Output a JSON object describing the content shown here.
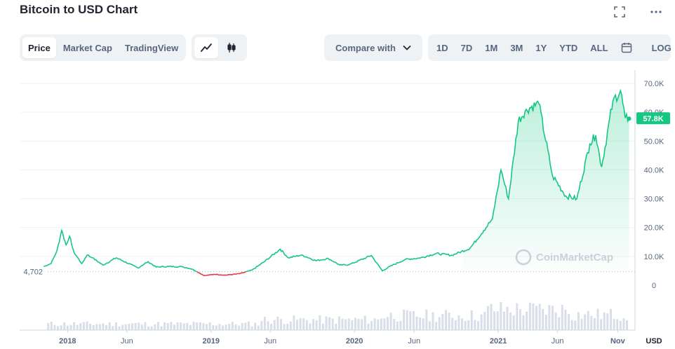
{
  "header": {
    "title": "Bitcoin to USD Chart",
    "fullscreen_icon": "expand-icon",
    "more_icon": "more-horizontal-icon"
  },
  "toolbar": {
    "view_tabs": [
      "Price",
      "Market Cap",
      "TradingView"
    ],
    "active_view": "Price",
    "chart_types": [
      "line-chart-icon",
      "candlestick-icon"
    ],
    "compare_label": "Compare with",
    "ranges": [
      "1D",
      "7D",
      "1M",
      "3M",
      "1Y",
      "YTD",
      "ALL"
    ],
    "calendar_icon": "calendar-icon",
    "log_label": "LOG"
  },
  "colors": {
    "up": "#16c784",
    "down": "#ea3943",
    "grid": "#eff2f5",
    "axis_text": "#58667e",
    "volume": "#cfd6e4"
  },
  "watermark": "CoinMarketCap",
  "chart_data": {
    "type": "area",
    "currency_label": "USD",
    "baseline_label": "4,702",
    "baseline": 4702,
    "current_label": "57.8K",
    "current": 57800,
    "ylim": [
      0,
      70000
    ],
    "y_ticks": [
      0,
      10000,
      20000,
      30000,
      40000,
      50000,
      60000,
      70000
    ],
    "y_tick_labels": [
      "0",
      "10.0K",
      "20.0K",
      "30.0K",
      "40.0K",
      "50.0K",
      "60.0K",
      "70.0K"
    ],
    "x_ticks": [
      "2018-01-01",
      "2018-06-01",
      "2019-01-01",
      "2019-06-01",
      "2020-01-01",
      "2020-06-01",
      "2021-01-01",
      "2021-06-01",
      "2021-11-01"
    ],
    "x_tick_labels": [
      "2018",
      "Jun",
      "2019",
      "Jun",
      "2020",
      "Jun",
      "2021",
      "Jun",
      "Nov"
    ],
    "xlim": [
      "2017-09-01",
      "2021-12-15"
    ],
    "dates": [
      "2017-11-01",
      "2017-11-20",
      "2017-12-05",
      "2017-12-17",
      "2017-12-28",
      "2018-01-06",
      "2018-01-17",
      "2018-02-06",
      "2018-02-20",
      "2018-03-05",
      "2018-04-01",
      "2018-05-05",
      "2018-06-29",
      "2018-07-25",
      "2018-08-14",
      "2018-09-15",
      "2018-10-20",
      "2018-11-15",
      "2018-12-15",
      "2019-01-10",
      "2019-02-07",
      "2019-03-15",
      "2019-04-15",
      "2019-05-15",
      "2019-06-26",
      "2019-07-17",
      "2019-08-20",
      "2019-09-25",
      "2019-10-26",
      "2019-11-25",
      "2019-12-18",
      "2020-02-13",
      "2020-03-12",
      "2020-03-31",
      "2020-05-10",
      "2020-06-15",
      "2020-07-27",
      "2020-09-05",
      "2020-10-21",
      "2020-11-25",
      "2020-12-17",
      "2021-01-08",
      "2021-01-27",
      "2021-02-21",
      "2021-03-13",
      "2021-04-14",
      "2021-05-19",
      "2021-06-22",
      "2021-07-20",
      "2021-08-22",
      "2021-09-06",
      "2021-09-21",
      "2021-10-20",
      "2021-11-08",
      "2021-11-20",
      "2021-11-30"
    ],
    "values": [
      6500,
      7500,
      12000,
      19000,
      14000,
      17000,
      11500,
      7500,
      10500,
      9500,
      7000,
      9500,
      6000,
      8200,
      6300,
      6500,
      6400,
      5600,
      3300,
      3800,
      3500,
      4000,
      5200,
      8000,
      12500,
      9500,
      10500,
      8500,
      9300,
      7000,
      7100,
      10300,
      5000,
      6500,
      9000,
      9400,
      11000,
      10400,
      12800,
      19000,
      23000,
      40000,
      30000,
      57000,
      61000,
      63000,
      38000,
      31000,
      30000,
      49000,
      52000,
      41000,
      64000,
      67500,
      58000,
      57800
    ],
    "volume_series": "daily trading volume (bars)"
  }
}
